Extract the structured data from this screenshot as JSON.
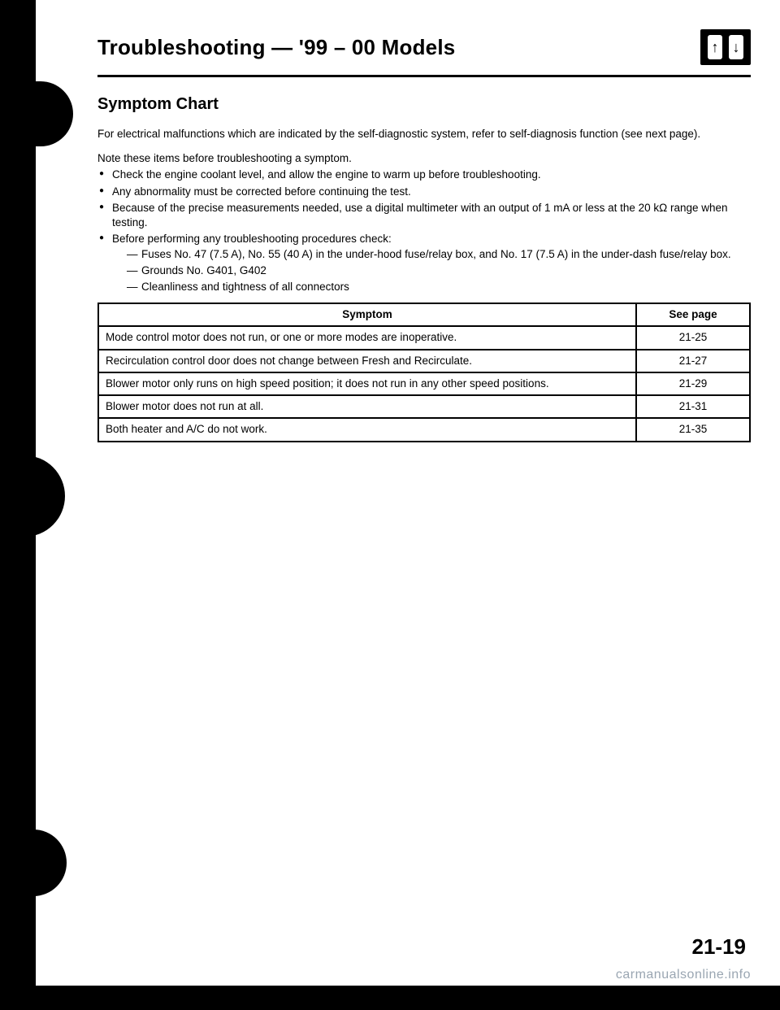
{
  "header": {
    "title": "Troubleshooting — '99 – 00 Models",
    "icon": {
      "name": "up-down-arrows-icon",
      "left_glyph": "↑",
      "right_glyph": "↓"
    }
  },
  "section_heading": "Symptom Chart",
  "intro_para": "For electrical malfunctions which are indicated by the self-diagnostic system, refer to self-diagnosis function (see next page).",
  "note_intro": "Note these items before troubleshooting a symptom.",
  "bullets": [
    "Check the engine coolant level, and allow the engine to warm up before troubleshooting.",
    "Any abnormality must be corrected before continuing the test.",
    "Because of the precise measurements needed, use a digital multimeter with an output of 1 mA or less at the 20 kΩ range when testing.",
    "Before performing any troubleshooting procedures check:"
  ],
  "sub_dashes": [
    "Fuses No. 47 (7.5 A), No. 55 (40 A) in the under-hood fuse/relay box, and No. 17 (7.5 A) in the under-dash fuse/relay box.",
    "Grounds No. G401, G402",
    "Cleanliness and tightness of all connectors"
  ],
  "table": {
    "columns": [
      "Symptom",
      "See page"
    ],
    "rows": [
      [
        "Mode control motor does not run, or one or more modes are inoperative.",
        "21-25"
      ],
      [
        "Recirculation control door does not change between Fresh and Recirculate.",
        "21-27"
      ],
      [
        "Blower motor only runs on high speed position; it does not run in any other speed positions.",
        "21-29"
      ],
      [
        "Blower motor does not run at all.",
        "21-31"
      ],
      [
        "Both heater and A/C do not work.",
        "21-35"
      ]
    ]
  },
  "page_number": "21-19",
  "watermark": "carmanualsonline.info",
  "colors": {
    "text": "#000000",
    "background": "#ffffff",
    "watermark": "#9aa6b2"
  }
}
